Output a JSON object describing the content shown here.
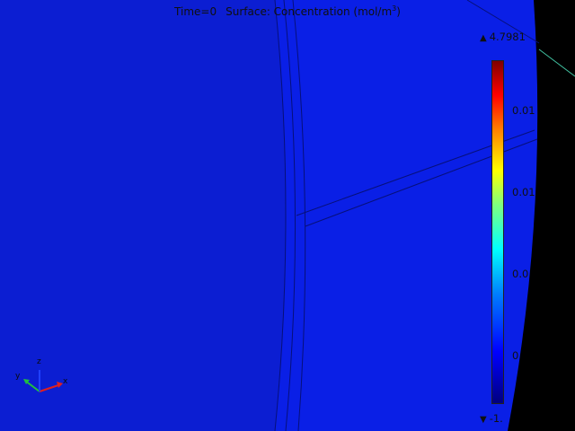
{
  "window": {
    "title_time": "Time=0",
    "title_surface": "Surface: Concentration (mol/m",
    "title_unit_exponent": "3",
    "title_close": ")"
  },
  "colorbar": {
    "max_label": "4.7981",
    "min_label": "-1.",
    "ticks": [
      "0.01",
      "0.01",
      "0.0",
      "0"
    ],
    "colormap": "rainbow",
    "max_marker_icon": "triangle-up-icon",
    "min_marker_icon": "triangle-down-icon"
  },
  "axis_triad": {
    "x": "x",
    "y": "y",
    "z": "z",
    "colors": {
      "x": "#e02020",
      "y": "#20c040",
      "z": "#2040ff"
    }
  },
  "colors": {
    "background": "#000000",
    "surface_fill": "#0a1fe6",
    "surface_inner": "#0c1ed2",
    "edge_lines": "#07107a",
    "accent_line": "#40c0a0"
  }
}
